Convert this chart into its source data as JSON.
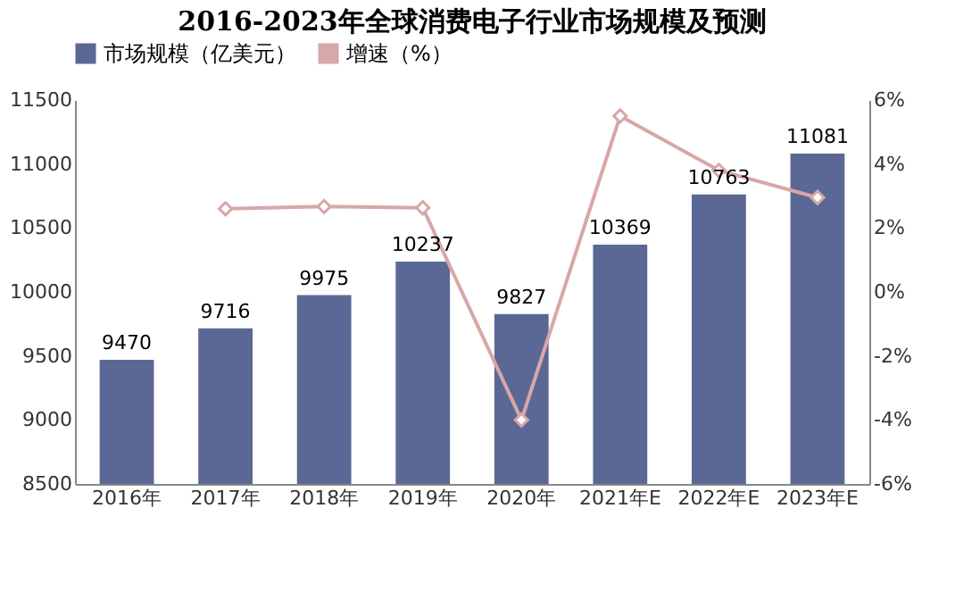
{
  "chart_data": {
    "type": "bar",
    "title": "2016-2023年全球消费电子行业市场规模及预测",
    "categories": [
      "2016年",
      "2017年",
      "2018年",
      "2019年",
      "2020年",
      "2021年E",
      "2022年E",
      "2023年E"
    ],
    "series": [
      {
        "name": "市场规模（亿美元）",
        "color": "#5b6895",
        "values": [
          9470,
          9716,
          9975,
          10237,
          9827,
          10369,
          10763,
          11081
        ],
        "value_labels": [
          "9470",
          "9716",
          "9975",
          "10237",
          "9827",
          "10369",
          "10763",
          "11081"
        ]
      },
      {
        "name": "增速（%）",
        "type": "line",
        "axis": "y2",
        "color": "#d8a7a8",
        "marker": "diamond",
        "values": [
          null,
          2.6,
          2.67,
          2.63,
          -4.0,
          5.5,
          3.8,
          2.95
        ]
      }
    ],
    "ylim": [
      8500,
      11500
    ],
    "yticks": [
      8500,
      9000,
      9500,
      10000,
      10500,
      11000,
      11500
    ],
    "y2lim": [
      -6,
      6
    ],
    "y2ticks": [
      {
        "value": -6,
        "label": "-6%"
      },
      {
        "value": -4,
        "label": "-4%"
      },
      {
        "value": -2,
        "label": "-2%"
      },
      {
        "value": 0,
        "label": "0%"
      },
      {
        "value": 2,
        "label": "2%"
      },
      {
        "value": 4,
        "label": "4%"
      },
      {
        "value": 6,
        "label": "6%"
      }
    ],
    "legend": "top",
    "grid": false
  }
}
